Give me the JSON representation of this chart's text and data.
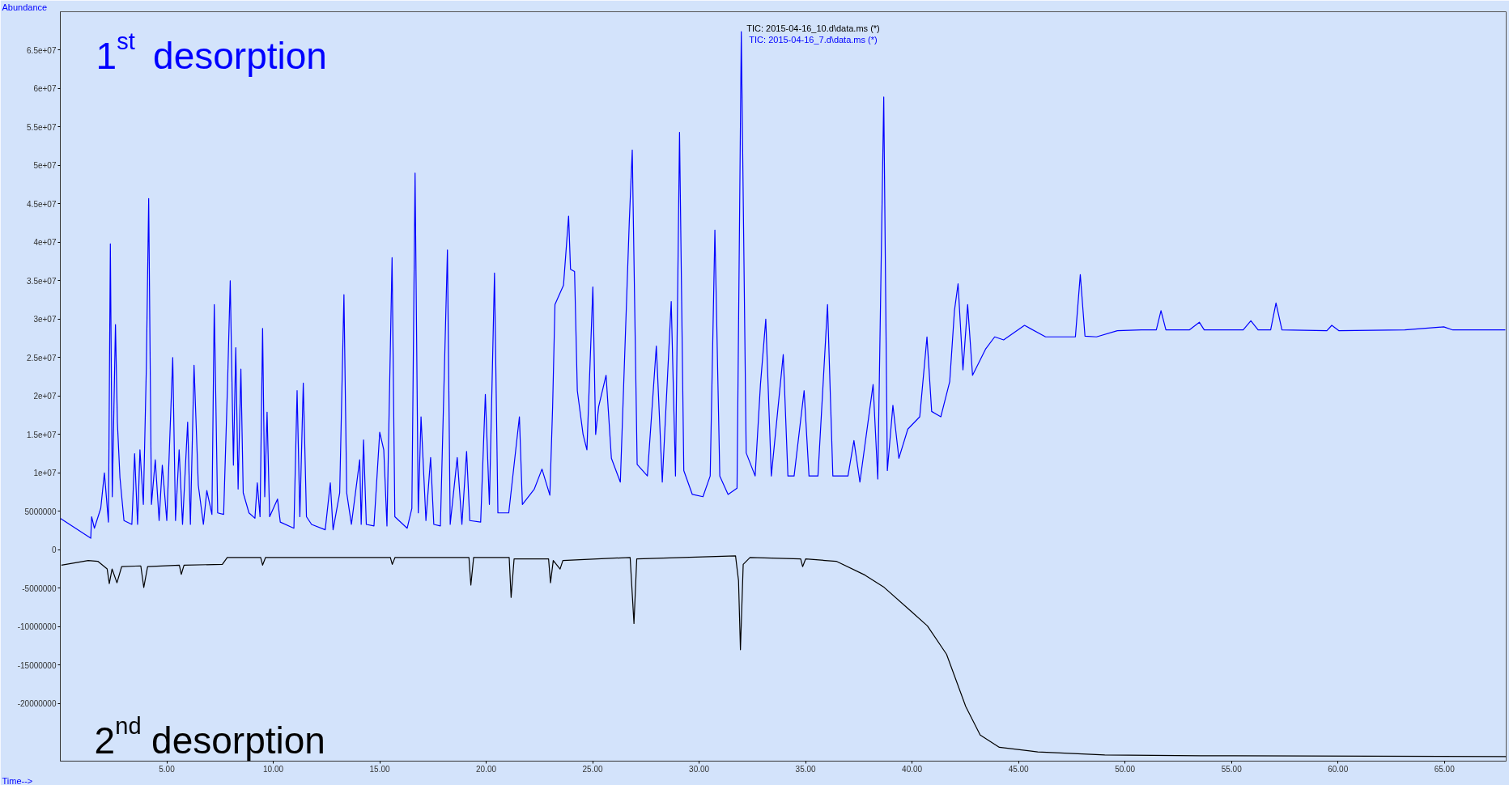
{
  "chart_data": {
    "type": "line",
    "xlabel": "Time-->",
    "ylabel": "Abundance",
    "xlim": [
      0,
      67.9
    ],
    "ylim": [
      -27500000,
      70000000
    ],
    "xticks": [
      {
        "value": 5,
        "label": "5.00"
      },
      {
        "value": 10,
        "label": "10.00"
      },
      {
        "value": 15,
        "label": "15.00"
      },
      {
        "value": 20,
        "label": "20.00"
      },
      {
        "value": 25,
        "label": "25.00"
      },
      {
        "value": 30,
        "label": "30.00"
      },
      {
        "value": 35,
        "label": "35.00"
      },
      {
        "value": 40,
        "label": "40.00"
      },
      {
        "value": 45,
        "label": "45.00"
      },
      {
        "value": 50,
        "label": "50.00"
      },
      {
        "value": 55,
        "label": "55.00"
      },
      {
        "value": 60,
        "label": "60.00"
      },
      {
        "value": 65,
        "label": "65.00"
      }
    ],
    "yticks": [
      -20000000,
      -15000000,
      -10000000,
      -5000000,
      0,
      5000000,
      {
        "value": 10000000,
        "label": "1e+07"
      },
      {
        "value": 15000000,
        "label": "1.5e+07"
      },
      {
        "value": 20000000,
        "label": "2e+07"
      },
      {
        "value": 25000000,
        "label": "2.5e+07"
      },
      {
        "value": 30000000,
        "label": "3e+07"
      },
      {
        "value": 35000000,
        "label": "3.5e+07"
      },
      {
        "value": 40000000,
        "label": "4e+07"
      },
      {
        "value": 45000000,
        "label": "4.5e+07"
      },
      {
        "value": 50000000,
        "label": "5e+07"
      },
      {
        "value": 55000000,
        "label": "5.5e+07"
      },
      {
        "value": 60000000,
        "label": "6e+07"
      },
      {
        "value": 65000000,
        "label": "6.5e+07"
      }
    ],
    "grid": false,
    "legend": "top",
    "marker": "none",
    "line_style": "solid",
    "annotations": [
      "1$^{st}$ desorption",
      "2$^{nd}$ desorption"
    ],
    "series": [
      {
        "name": "TIC: 2015-04-16_10.d\\data.ms (*)",
        "color": "#000000",
        "x": [
          0.05,
          1.31,
          1.76,
          2.2,
          2.3,
          2.43,
          2.66,
          2.88,
          3.78,
          3.92,
          4.1,
          5.59,
          5.68,
          5.81,
          7.61,
          7.84,
          9.41,
          9.5,
          9.64,
          15.5,
          15.59,
          15.72,
          19.19,
          19.28,
          19.41,
          21.08,
          21.17,
          21.31,
          22.93,
          23.02,
          23.15,
          23.47,
          23.6,
          26.76,
          26.94,
          27.07,
          31.71,
          31.85,
          31.94,
          32.07,
          32.39,
          34.77,
          34.86,
          35.0,
          36.44,
          37.79,
          38.69,
          39.95,
          40.72,
          41.62,
          42.52,
          43.2,
          44.1,
          45.9,
          49.05,
          53.56,
          67.9
        ],
        "values": [
          -2000000,
          -1400000,
          -1500000,
          -2500000,
          -4400000,
          -2500000,
          -4300000,
          -2200000,
          -2100000,
          -4900000,
          -2200000,
          -2000000,
          -3200000,
          -2000000,
          -1900000,
          -1000000,
          -1000000,
          -2000000,
          -1000000,
          -1000000,
          -1900000,
          -1000000,
          -1000000,
          -4600000,
          -1000000,
          -1000000,
          -6200000,
          -1200000,
          -1200000,
          -4300000,
          -1400000,
          -2500000,
          -1400000,
          -1000000,
          -9600000,
          -1200000,
          -800000,
          -4000000,
          -13000000,
          -1900000,
          -1000000,
          -1200000,
          -2200000,
          -1200000,
          -1500000,
          -3300000,
          -4900000,
          -8000000,
          -9900000,
          -13600000,
          -20400000,
          -24100000,
          -25700000,
          -26300000,
          -26700000,
          -26800000,
          -26900000
        ]
      },
      {
        "name": "TIC: 2015-04-16_7.d\\data.ms (*)",
        "color": "#0000ff",
        "x": [
          0,
          1.43,
          1.47,
          1.6,
          1.9,
          2.07,
          2.26,
          2.35,
          2.44,
          2.59,
          2.68,
          2.8,
          2.99,
          3.36,
          3.49,
          3.63,
          3.74,
          3.9,
          4.04,
          4.15,
          4.28,
          4.46,
          4.64,
          4.79,
          5.0,
          5.28,
          5.41,
          5.58,
          5.74,
          5.98,
          6.11,
          6.28,
          6.48,
          6.72,
          6.88,
          7.12,
          7.23,
          7.39,
          7.67,
          7.85,
          7.98,
          8.13,
          8.24,
          8.35,
          8.48,
          8.59,
          8.86,
          9.14,
          9.25,
          9.38,
          9.5,
          9.6,
          9.71,
          9.83,
          10.2,
          10.33,
          10.97,
          11.12,
          11.25,
          11.41,
          11.56,
          11.8,
          12.44,
          12.68,
          12.81,
          13.12,
          13.32,
          13.45,
          13.67,
          14.06,
          14.13,
          14.24,
          14.37,
          14.73,
          15.0,
          15.19,
          15.34,
          15.58,
          15.71,
          16.29,
          16.51,
          16.66,
          16.81,
          16.94,
          17.17,
          17.39,
          17.54,
          17.85,
          18.18,
          18.31,
          18.64,
          18.86,
          19.08,
          19.23,
          19.74,
          19.96,
          20.15,
          20.39,
          20.55,
          21.06,
          21.56,
          21.7,
          22.26,
          22.62,
          22.99,
          23.12,
          23.23,
          23.63,
          23.87,
          23.96,
          24.15,
          24.28,
          24.55,
          24.73,
          25.01,
          25.14,
          25.28,
          25.63,
          25.88,
          26.3,
          26.72,
          26.86,
          27.09,
          27.57,
          27.99,
          28.27,
          28.69,
          28.89,
          29.08,
          29.28,
          29.68,
          30.18,
          30.52,
          30.74,
          30.97,
          31.36,
          31.78,
          31.98,
          32.21,
          32.63,
          32.88,
          33.13,
          33.39,
          33.95,
          34.17,
          34.46,
          34.93,
          35.16,
          35.58,
          36.03,
          36.28,
          36.99,
          37.27,
          37.55,
          38.17,
          38.39,
          38.67,
          38.84,
          39.1,
          39.38,
          39.8,
          40.36,
          40.7,
          40.92,
          41.35,
          41.77,
          41.99,
          42.16,
          42.39,
          42.61,
          42.84,
          43.45,
          43.88,
          44.3,
          45.28,
          46.27,
          47.67,
          47.9,
          48.12,
          48.66,
          49.64,
          50.77,
          51.47,
          51.69,
          51.92,
          53.02,
          53.49,
          53.72,
          55.55,
          55.91,
          56.25,
          56.84,
          57.09,
          57.37,
          59.48,
          59.71,
          60.05,
          63.14,
          64.97,
          65.39,
          67.86
        ],
        "values": [
          4100000,
          1500000,
          4300000,
          2800000,
          5400000,
          10000000,
          3600000,
          39800000,
          6900000,
          29300000,
          16600000,
          9400000,
          3800000,
          3300000,
          12500000,
          3300000,
          13000000,
          5900000,
          23700000,
          45700000,
          5900000,
          11700000,
          3800000,
          11000000,
          3800000,
          25000000,
          3800000,
          13000000,
          3300000,
          16600000,
          3300000,
          24000000,
          8400000,
          3300000,
          7700000,
          4600000,
          31900000,
          4800000,
          4600000,
          21200000,
          35000000,
          11000000,
          26300000,
          7900000,
          23500000,
          7400000,
          4800000,
          4100000,
          8700000,
          4300000,
          28800000,
          6900000,
          17900000,
          4300000,
          6600000,
          3600000,
          2800000,
          20700000,
          4300000,
          21700000,
          4300000,
          3300000,
          2600000,
          8700000,
          2600000,
          7400000,
          33200000,
          7400000,
          3300000,
          11700000,
          3300000,
          14300000,
          3300000,
          3100000,
          15300000,
          13000000,
          3100000,
          38000000,
          4300000,
          2800000,
          5400000,
          49000000,
          4800000,
          17300000,
          3800000,
          12000000,
          3300000,
          3100000,
          39000000,
          3300000,
          12000000,
          3300000,
          12800000,
          3800000,
          3600000,
          20200000,
          5900000,
          36000000,
          4800000,
          4800000,
          17300000,
          5900000,
          7900000,
          10500000,
          7100000,
          18600000,
          31900000,
          34400000,
          43400000,
          36500000,
          36200000,
          20700000,
          15000000,
          13000000,
          34200000,
          15000000,
          18600000,
          22700000,
          11900000,
          8800000,
          42700000,
          52000000,
          11100000,
          9600000,
          26500000,
          8800000,
          32300000,
          9600000,
          54300000,
          10300000,
          7200000,
          6900000,
          9600000,
          41600000,
          9600000,
          7200000,
          8000000,
          67400000,
          12600000,
          9600000,
          21500000,
          30000000,
          9600000,
          25400000,
          9600000,
          9600000,
          20700000,
          9600000,
          9600000,
          31900000,
          9600000,
          9600000,
          14200000,
          8800000,
          21500000,
          9200000,
          58900000,
          10300000,
          18800000,
          11900000,
          15700000,
          17300000,
          27700000,
          18000000,
          17300000,
          21900000,
          31100000,
          34600000,
          23400000,
          31900000,
          22700000,
          26100000,
          27700000,
          27300000,
          29200000,
          27700000,
          27700000,
          35800000,
          27800000,
          27700000,
          28500000,
          28600000,
          28600000,
          31100000,
          28600000,
          28600000,
          29600000,
          28600000,
          28600000,
          29800000,
          28600000,
          28600000,
          32100000,
          28600000,
          28500000,
          29200000,
          28500000,
          28600000,
          29000000,
          28600000,
          28600000
        ]
      }
    ]
  }
}
